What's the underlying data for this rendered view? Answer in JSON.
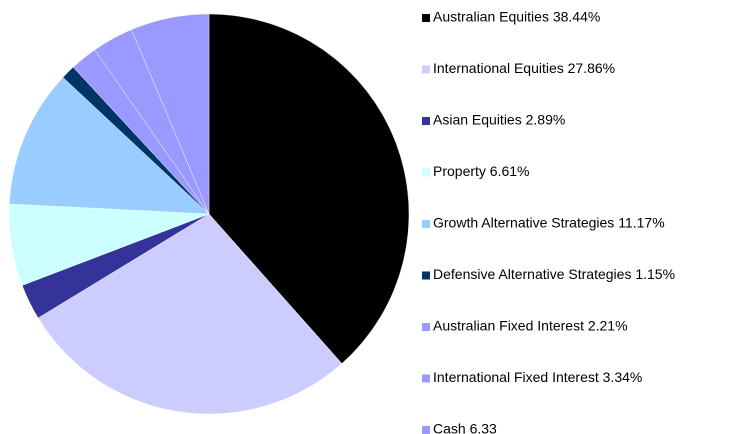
{
  "chart_data": {
    "type": "pie",
    "categories": [
      "Australian Equities 38.44%",
      "International Equities 27.86%",
      "Asian Equities 2.89%",
      "Property 6.61%",
      "Growth Alternative Strategies 11.17%",
      "Defensive Alternative Strategies 1.15%",
      "Australian Fixed Interest 2.21%",
      "International Fixed Interest 3.34%",
      "Cash 6.33"
    ],
    "values": [
      38.44,
      27.86,
      2.89,
      6.61,
      11.17,
      1.15,
      2.21,
      3.34,
      6.33
    ],
    "colors": [
      "#000000",
      "#ccccff",
      "#333399",
      "#ccffff",
      "#99ccff",
      "#003366",
      "#9999ff",
      "#9999ff",
      "#9999ff"
    ],
    "legend": "right"
  }
}
